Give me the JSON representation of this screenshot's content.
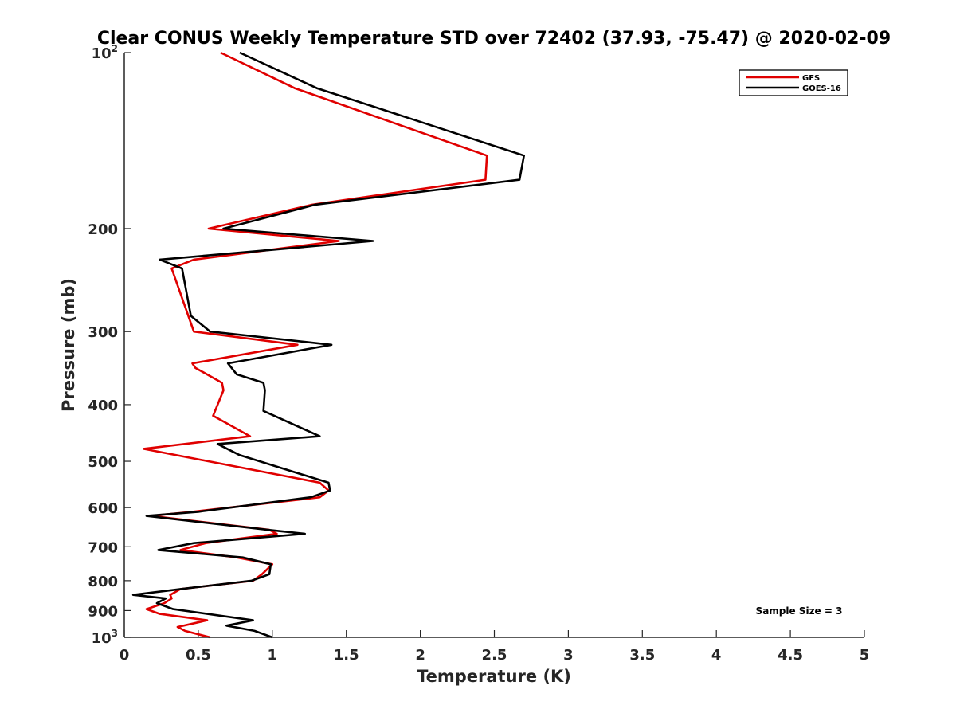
{
  "chart_data": {
    "type": "line",
    "title": "Clear CONUS Weekly Temperature STD over 72402 (37.93, -75.47) @ 2020-02-09",
    "xlabel": "Temperature (K)",
    "ylabel": "Pressure (mb)",
    "xlim": [
      0,
      5
    ],
    "ylim": [
      100,
      1000
    ],
    "y_scale": "log",
    "y_reversed": true,
    "x_ticks": [
      "0",
      "0.5",
      "1",
      "1.5",
      "2",
      "2.5",
      "3",
      "3.5",
      "4",
      "4.5",
      "5"
    ],
    "y_ticks": [
      {
        "value": 100,
        "base": "10",
        "exp": "2"
      },
      {
        "value": 200,
        "label": "200"
      },
      {
        "value": 300,
        "label": "300"
      },
      {
        "value": 400,
        "label": "400"
      },
      {
        "value": 500,
        "label": "500"
      },
      {
        "value": 600,
        "label": "600"
      },
      {
        "value": 700,
        "label": "700"
      },
      {
        "value": 800,
        "label": "800"
      },
      {
        "value": 900,
        "label": "900"
      },
      {
        "value": 1000,
        "base": "10",
        "exp": "3"
      }
    ],
    "grid": false,
    "legend_position": "top-right",
    "annotation": "Sample Size = 3",
    "series": [
      {
        "name": "GFS",
        "color": "#e00000",
        "points": [
          [
            0.65,
            100
          ],
          [
            1.15,
            115
          ],
          [
            2.45,
            150
          ],
          [
            2.44,
            165
          ],
          [
            1.27,
            182
          ],
          [
            0.57,
            200
          ],
          [
            1.45,
            210
          ],
          [
            0.47,
            226
          ],
          [
            0.32,
            234
          ],
          [
            0.47,
            300
          ],
          [
            1.17,
            316
          ],
          [
            0.46,
            340
          ],
          [
            0.48,
            346
          ],
          [
            0.66,
            367
          ],
          [
            0.67,
            378
          ],
          [
            0.6,
            418
          ],
          [
            0.85,
            453
          ],
          [
            0.13,
            476
          ],
          [
            1.32,
            544
          ],
          [
            1.38,
            561
          ],
          [
            1.32,
            576
          ],
          [
            0.46,
            610
          ],
          [
            0.18,
            620
          ],
          [
            0.98,
            655
          ],
          [
            1.03,
            665
          ],
          [
            0.55,
            690
          ],
          [
            0.38,
            709
          ],
          [
            0.76,
            730
          ],
          [
            1.0,
            750
          ],
          [
            0.93,
            780
          ],
          [
            0.87,
            800
          ],
          [
            0.38,
            827
          ],
          [
            0.31,
            846
          ],
          [
            0.32,
            858
          ],
          [
            0.27,
            874
          ],
          [
            0.15,
            895
          ],
          [
            0.24,
            912
          ],
          [
            0.56,
            935
          ],
          [
            0.36,
            960
          ],
          [
            0.41,
            975
          ],
          [
            0.58,
            1000
          ]
        ]
      },
      {
        "name": "GOES-16",
        "color": "#000000",
        "points": [
          [
            0.78,
            100
          ],
          [
            1.3,
            115
          ],
          [
            2.7,
            150
          ],
          [
            2.67,
            165
          ],
          [
            1.29,
            182
          ],
          [
            0.67,
            200
          ],
          [
            1.68,
            210
          ],
          [
            0.24,
            226
          ],
          [
            0.39,
            234
          ],
          [
            0.45,
            282
          ],
          [
            0.58,
            300
          ],
          [
            1.4,
            316
          ],
          [
            0.7,
            340
          ],
          [
            0.76,
            355
          ],
          [
            0.94,
            367
          ],
          [
            0.95,
            378
          ],
          [
            0.94,
            410
          ],
          [
            1.32,
            453
          ],
          [
            0.63,
            467
          ],
          [
            0.78,
            488
          ],
          [
            1.38,
            544
          ],
          [
            1.39,
            561
          ],
          [
            1.26,
            576
          ],
          [
            0.5,
            610
          ],
          [
            0.15,
            620
          ],
          [
            0.97,
            655
          ],
          [
            1.22,
            665
          ],
          [
            0.47,
            690
          ],
          [
            0.23,
            709
          ],
          [
            0.8,
            730
          ],
          [
            0.99,
            750
          ],
          [
            0.98,
            780
          ],
          [
            0.86,
            800
          ],
          [
            0.38,
            827
          ],
          [
            0.06,
            846
          ],
          [
            0.28,
            858
          ],
          [
            0.22,
            874
          ],
          [
            0.33,
            895
          ],
          [
            0.87,
            935
          ],
          [
            0.69,
            955
          ],
          [
            0.88,
            975
          ],
          [
            1.0,
            1000
          ]
        ]
      }
    ]
  }
}
